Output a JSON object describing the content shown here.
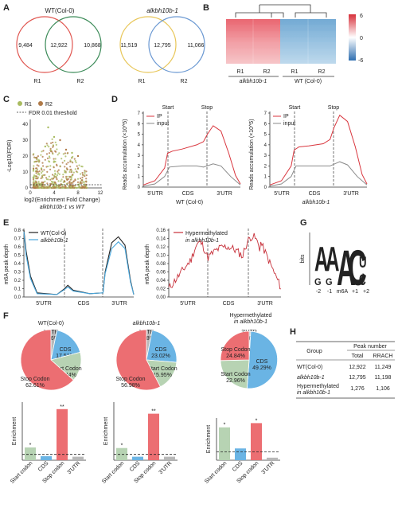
{
  "panel_labels": [
    "A",
    "B",
    "C",
    "D",
    "E",
    "F",
    "G",
    "H"
  ],
  "panelA": {
    "venns": [
      {
        "title": "WT(Col-0)",
        "title_italic": false,
        "left": "9,484",
        "mid": "12,922",
        "right": "10,868",
        "r1": "R1",
        "r2": "R2",
        "color1": "#e0554f",
        "color2": "#3a8a57"
      },
      {
        "title": "alkbh10b-1",
        "title_italic": true,
        "left": "11,519",
        "mid": "12,795",
        "right": "11,066",
        "r1": "R1",
        "r2": "R2",
        "color1": "#e8c658",
        "color2": "#6a98d2"
      }
    ]
  },
  "panelB": {
    "legend": [
      "6",
      "0",
      "-6"
    ],
    "col_labels": [
      "R1",
      "R2",
      "R1",
      "R2"
    ],
    "group_labels": [
      "alkbh10b-1",
      "WT (Col-0)"
    ]
  },
  "panelC": {
    "legend": [
      "R1",
      "R2",
      "FDR 0.01 threshold"
    ],
    "ylabel": "-Log10(FDR)",
    "xlabel": "log2(Enrichment Fold Change)",
    "xlabel2": "alkbh10b-1 vs WT",
    "xticks": [
      "0",
      "4",
      "8",
      "12"
    ],
    "yticks": [
      "0",
      "10",
      "20",
      "30",
      "40"
    ]
  },
  "panelD": {
    "plots": [
      {
        "xlabel": "WT (Col-0)",
        "xlabel_italic": false,
        "legend": [
          "IP",
          "input"
        ],
        "markers": [
          "Start",
          "Stop"
        ],
        "regions": [
          "5'UTR",
          "CDS",
          "3'UTR"
        ],
        "ylabel": "Reads accumulation (×10^5)",
        "yticks": [
          "0",
          "1",
          "2",
          "3",
          "4",
          "5",
          "6",
          "7"
        ]
      },
      {
        "xlabel": "alkbh10b-1",
        "xlabel_italic": true,
        "legend": [
          "IP",
          "input"
        ],
        "markers": [
          "Start",
          "Stop"
        ],
        "regions": [
          "5'UTR",
          "CDS",
          "3'UTR"
        ],
        "ylabel": "Reads accumulation (×10^5)",
        "yticks": [
          "0",
          "1",
          "2",
          "3",
          "4",
          "5",
          "6",
          "7"
        ]
      }
    ]
  },
  "panelE": {
    "plots": [
      {
        "legend": [
          "WT(Col-0)",
          "alkbh10b-1"
        ],
        "ylabel": "m6A peak depth",
        "yticks": [
          "0.0",
          "0.1",
          "0.2",
          "0.3",
          "0.4",
          "0.5",
          "0.6",
          "0.7",
          "0.8"
        ],
        "regions": [
          "5'UTR",
          "CDS",
          "3'UTR"
        ]
      },
      {
        "legend": [
          "Hypermethylated",
          "in alkbh10b-1"
        ],
        "ylabel": "m6A peak depth",
        "yticks": [
          "0.00",
          "0.02",
          "0.04",
          "0.06",
          "0.08",
          "0.10",
          "0.12",
          "0.14",
          "0.16"
        ],
        "regions": [
          "5'UTR",
          "CDS",
          "3'UTR"
        ]
      }
    ]
  },
  "panelF": {
    "pies": [
      {
        "title": "WT(Col-0)",
        "title_italic": false,
        "slices": [
          {
            "label": "3'UTR",
            "pct": "3.16%",
            "value": 3.16,
            "color": "#b8b8b8"
          },
          {
            "label": "CDS",
            "pct": "17.51%",
            "value": 17.51,
            "color": "#6ab4e4"
          },
          {
            "label": "Start Codon",
            "pct": "15.44%",
            "value": 15.44,
            "color": "#b7d3b3"
          },
          {
            "label": "Stop Codon",
            "pct": "62.61%",
            "value": 62.61,
            "color": "#ec6e72"
          }
        ]
      },
      {
        "title": "alkbh10b-1",
        "title_italic": true,
        "slices": [
          {
            "label": "3'UTR",
            "pct": "2.98%",
            "value": 2.98,
            "color": "#b8b8b8"
          },
          {
            "label": "CDS",
            "pct": "23.02%",
            "value": 23.02,
            "color": "#6ab4e4"
          },
          {
            "label": "Start Codon",
            "pct": "15.95%",
            "value": 15.95,
            "color": "#b7d3b3"
          },
          {
            "label": "Stop Codon",
            "pct": "56.98%",
            "value": 56.98,
            "color": "#ec6e72"
          }
        ]
      },
      {
        "title": "Hypermethylated",
        "title2": "in alkbh10b-1",
        "title_italic": false,
        "slices": [
          {
            "label": "3'UTR",
            "pct": "0.86%",
            "value": 0.86,
            "color": "#b8b8b8"
          },
          {
            "label": "CDS",
            "pct": "49.29%",
            "value": 49.29,
            "color": "#6ab4e4"
          },
          {
            "label": "Start Codon",
            "pct": "22.96%",
            "value": 22.96,
            "color": "#b7d3b3"
          },
          {
            "label": "Stop Codon",
            "pct": "24.84%",
            "value": 24.84,
            "color": "#ec6e72"
          }
        ]
      }
    ],
    "bars": [
      {
        "values": [
          2.2,
          0.7,
          8.8,
          0.6
        ],
        "stars": [
          "*",
          "",
          "**",
          ""
        ],
        "ylim": [
          0,
          10
        ]
      },
      {
        "values": [
          2.1,
          0.6,
          8.0,
          0.6
        ],
        "stars": [
          "*",
          "",
          "**",
          ""
        ],
        "ylim": [
          0,
          10
        ]
      },
      {
        "values": [
          3.9,
          1.4,
          4.4,
          0.3
        ],
        "stars": [
          "*",
          "",
          "*",
          ""
        ],
        "ylim": [
          0,
          5
        ]
      }
    ],
    "categories": [
      "Start codon",
      "CDS",
      "Stop codon",
      "3'UTR"
    ],
    "colors": [
      "#b7d3b3",
      "#6ab4e4",
      "#ec6e72",
      "#b8b8b8"
    ],
    "ylabel": "Enrichment"
  },
  "panelG": {
    "ylabel": "bits",
    "positions": [
      "-2",
      "-1",
      "m6A",
      "+1",
      "+2"
    ]
  },
  "panelH": {
    "header_group": "Group",
    "header_peak": "Peak number",
    "cols": [
      "Total",
      "RRACH"
    ],
    "rows": [
      {
        "group": "WT(Col-0)",
        "group_italic": false,
        "total": "12,922",
        "rrach": "11,249"
      },
      {
        "group": "alkbh10b-1",
        "group_italic": true,
        "total": "12,795",
        "rrach": "11,198"
      },
      {
        "group": "Hypermethylated",
        "group2": "in alkbh10b-1",
        "group_italic": false,
        "total": "1,276",
        "rrach": "1,106"
      }
    ]
  }
}
